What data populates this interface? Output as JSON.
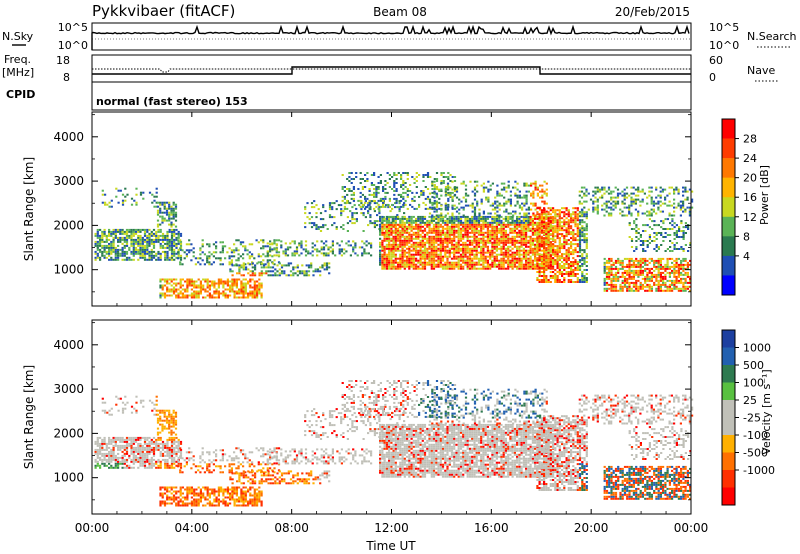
{
  "header": {
    "station": "Pykkvibaer (fitACF)",
    "beam": "Beam 08",
    "date": "20/Feb/2015"
  },
  "noise_panel": {
    "left_label": "N.Sky",
    "right_label": "N.Search",
    "left_ticks": [
      "10^5",
      "10^0"
    ],
    "right_ticks": [
      "10^5",
      "10^0"
    ]
  },
  "freq_panel": {
    "left_label_line1": "Freq.",
    "left_label_line2": "[MHz]",
    "right_label": "Nave",
    "left_ticks": [
      "18",
      "8"
    ],
    "right_ticks": [
      "60",
      "0"
    ]
  },
  "cpid": {
    "label": "CPID",
    "value": "normal (fast stereo) 153"
  },
  "chart_data": [
    {
      "type": "heatmap",
      "title": "Power",
      "ylabel": "Slant Range [km]",
      "xlabel": "",
      "x_range_hours": [
        0,
        24
      ],
      "ylim_km": [
        180,
        4560
      ],
      "y_ticks": [
        "1000",
        "2000",
        "3000",
        "4000"
      ],
      "colorbar": {
        "label": "Power [dB]",
        "ticks": [
          "4",
          "8",
          "12",
          "16",
          "20",
          "24",
          "28"
        ],
        "colors": [
          "#0000ff",
          "#1f4fb4",
          "#2a7a50",
          "#5ab356",
          "#c8d820",
          "#ffb400",
          "#ff7800",
          "#ff3c00",
          "#ff0000"
        ]
      }
    },
    {
      "type": "heatmap",
      "title": "Velocity",
      "ylabel": "Slant Range [km]",
      "xlabel": "Time UT",
      "x_range_hours": [
        0,
        24
      ],
      "ylim_km": [
        180,
        4560
      ],
      "x_ticks": [
        "00:00",
        "04:00",
        "08:00",
        "12:00",
        "16:00",
        "20:00",
        "00:00"
      ],
      "y_ticks": [
        "1000",
        "2000",
        "3000",
        "4000"
      ],
      "colorbar": {
        "label": "Velocity [m s⁻¹]",
        "ticks": [
          "1000",
          "500",
          "100",
          "25",
          "-25",
          "-100",
          "-500",
          "-1000"
        ],
        "colors": [
          "#1c3fa0",
          "#2260b0",
          "#2e7a50",
          "#58c040",
          "#c0c0b8",
          "#c0c0b8",
          "#ffb000",
          "#ff7000",
          "#ff3000",
          "#ff0000"
        ]
      }
    }
  ]
}
